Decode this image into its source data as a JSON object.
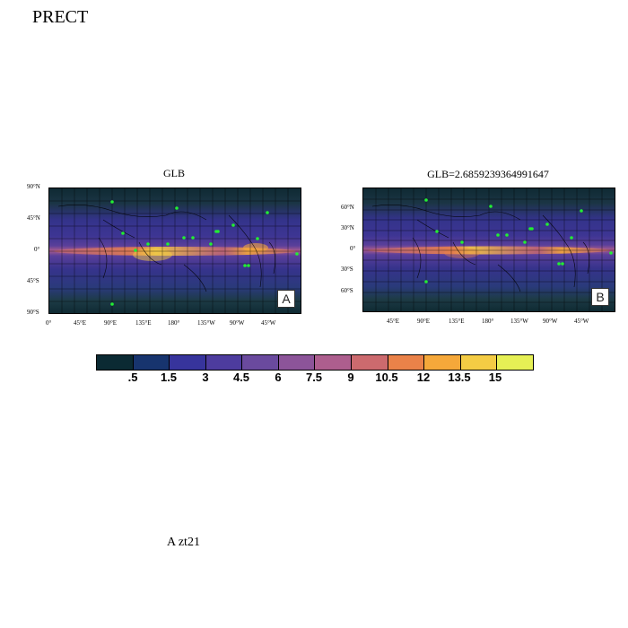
{
  "page_title": "PRECT",
  "panels": [
    {
      "title": "GLB",
      "tag": "A",
      "lat_labels": [
        "90°N",
        "45°N",
        "0°",
        "45°S",
        "90°S"
      ],
      "lon_labels": [
        "0°",
        "45°E",
        "90°E",
        "135°E",
        "180°",
        "135°W",
        "90°W",
        "45°W"
      ]
    },
    {
      "title": "GLB=2.6859239364991647",
      "tag": "B",
      "lat_labels": [
        "60°N",
        "30°N",
        "0°",
        "30°S",
        "60°S"
      ],
      "lon_labels": [
        "45°E",
        "90°E",
        "135°E",
        "180°",
        "135°W",
        "90°W",
        "45°W"
      ]
    }
  ],
  "colorbar": {
    "labels": [
      ".5",
      "1.5",
      "3",
      "4.5",
      "6",
      "7.5",
      "9",
      "10.5",
      "12",
      "13.5",
      "15"
    ],
    "colors": [
      "#0b2a33",
      "#17346e",
      "#37349c",
      "#4d3c9e",
      "#6a4a9e",
      "#8c5499",
      "#ad5e8e",
      "#cc6a6e",
      "#ea8249",
      "#f5a83a",
      "#f4cc44",
      "#e6f055"
    ]
  },
  "footer": "A  zt21"
}
